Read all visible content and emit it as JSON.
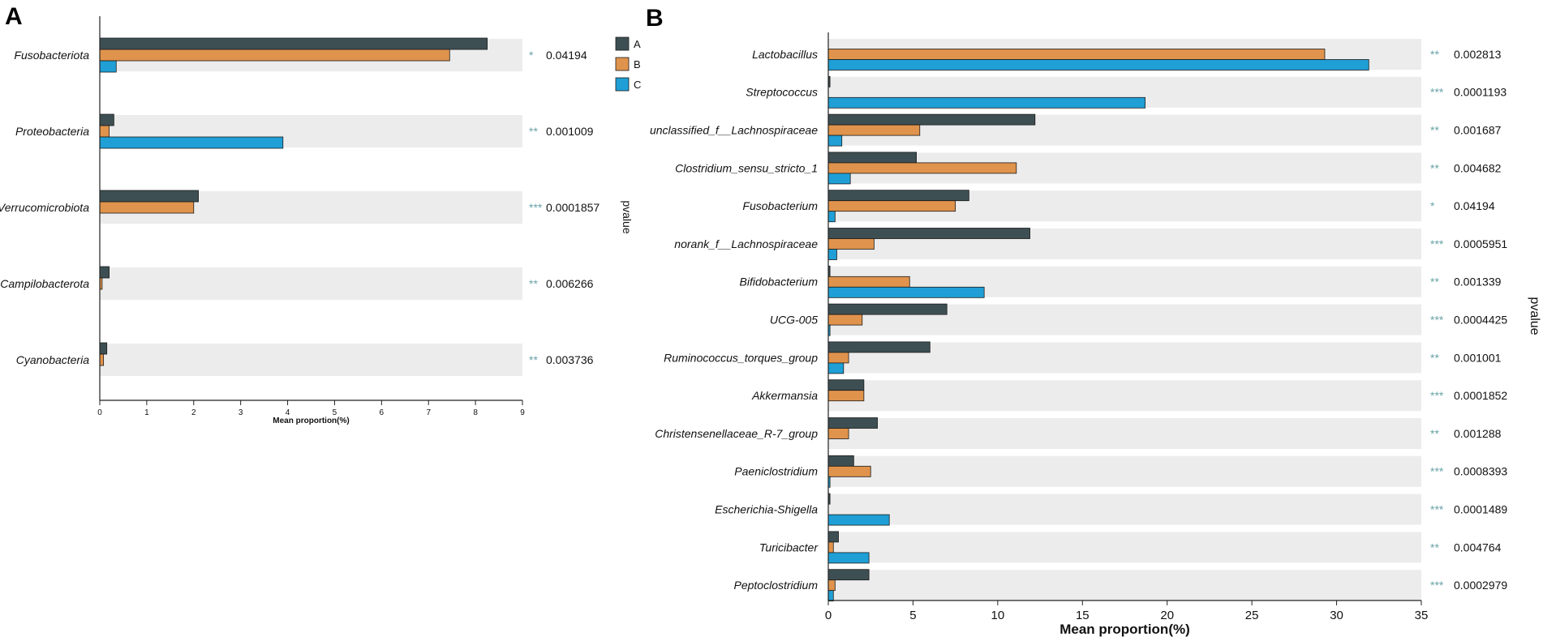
{
  "chart_data": [
    {
      "type": "bar",
      "panel_label": "A",
      "orientation": "horizontal",
      "categories": [
        "Fusobacteriota",
        "Proteobacteria",
        "Verrucomicrobiota",
        "Campilobacterota",
        "Cyanobacteria"
      ],
      "series": [
        {
          "name": "A",
          "color": "#3e4f53",
          "values": [
            8.25,
            0.3,
            2.1,
            0.2,
            0.15
          ]
        },
        {
          "name": "B",
          "color": "#e0934c",
          "values": [
            7.45,
            0.2,
            2.0,
            0.05,
            0.08
          ]
        },
        {
          "name": "C",
          "color": "#1f9fd6",
          "values": [
            0.35,
            3.9,
            0.0,
            0.0,
            0.0
          ]
        }
      ],
      "stars": [
        "*",
        "**",
        "***",
        "**",
        "**"
      ],
      "pvalues": [
        "0.04194",
        "0.001009",
        "0.0001857",
        "0.006266",
        "0.003736"
      ],
      "xlabel": "Mean proportion(%)",
      "side_label": "pvalue",
      "xlim": [
        0,
        9
      ],
      "xticks": [
        "0",
        "1",
        "2",
        "3",
        "4",
        "5",
        "6",
        "7",
        "8",
        "9"
      ],
      "legend": [
        "A",
        "B",
        "C"
      ]
    },
    {
      "type": "bar",
      "panel_label": "B",
      "orientation": "horizontal",
      "categories": [
        "Lactobacillus",
        "Streptococcus",
        "unclassified_f__Lachnospiraceae",
        "Clostridium_sensu_stricto_1",
        "Fusobacterium",
        "norank_f__Lachnospiraceae",
        "Bifidobacterium",
        "UCG-005",
        "Ruminococcus_torques_group",
        "Akkermansia",
        "Christensenellaceae_R-7_group",
        "Paeniclostridium",
        "Escherichia-Shigella",
        "Turicibacter",
        "Peptoclostridium"
      ],
      "series": [
        {
          "name": "A",
          "color": "#3e4f53",
          "values": [
            0.0,
            0.1,
            12.2,
            5.2,
            8.3,
            11.9,
            0.1,
            7.0,
            6.0,
            2.1,
            2.9,
            1.5,
            0.1,
            0.6,
            2.4
          ]
        },
        {
          "name": "B",
          "color": "#e0934c",
          "values": [
            29.3,
            0.0,
            5.4,
            11.1,
            7.5,
            2.7,
            4.8,
            2.0,
            1.2,
            2.1,
            1.2,
            2.5,
            0.0,
            0.3,
            0.4
          ]
        },
        {
          "name": "C",
          "color": "#1f9fd6",
          "values": [
            31.9,
            18.7,
            0.8,
            1.3,
            0.4,
            0.5,
            9.2,
            0.1,
            0.9,
            0.0,
            0.0,
            0.1,
            3.6,
            2.4,
            0.3
          ]
        }
      ],
      "stars": [
        "**",
        "***",
        "**",
        "**",
        "*",
        "***",
        "**",
        "***",
        "**",
        "***",
        "**",
        "***",
        "***",
        "**",
        "***"
      ],
      "pvalues": [
        "0.002813",
        "0.0001193",
        "0.001687",
        "0.004682",
        "0.04194",
        "0.0005951",
        "0.001339",
        "0.0004425",
        "0.001001",
        "0.0001852",
        "0.001288",
        "0.0008393",
        "0.0001489",
        "0.004764",
        "0.0002979"
      ],
      "xlabel": "Mean proportion(%)",
      "side_label": "pvalue",
      "xlim": [
        0,
        35
      ],
      "xticks": [
        "0",
        "5",
        "10",
        "15",
        "20",
        "25",
        "30",
        "35"
      ]
    }
  ]
}
